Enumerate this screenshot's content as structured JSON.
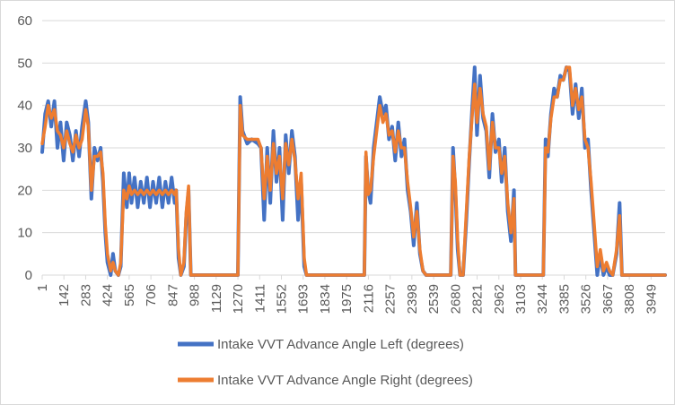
{
  "chart_data": {
    "type": "line",
    "title": "",
    "xlabel": "",
    "ylabel": "",
    "ylim": [
      0,
      60
    ],
    "yticks": [
      0,
      10,
      20,
      30,
      40,
      50,
      60
    ],
    "xlim": [
      1,
      4040
    ],
    "xticks": [
      1,
      142,
      283,
      424,
      565,
      706,
      847,
      988,
      1129,
      1270,
      1411,
      1552,
      1693,
      1834,
      1975,
      2116,
      2257,
      2398,
      2539,
      2680,
      2821,
      2962,
      3103,
      3244,
      3385,
      3526,
      3667,
      3808,
      3949
    ],
    "grid": "horizontal",
    "legend_position": "bottom",
    "series": [
      {
        "name": "Intake VVT Advance Angle Left (degrees)",
        "color": "#4472C4",
        "points": [
          [
            1,
            29
          ],
          [
            20,
            38
          ],
          [
            40,
            41
          ],
          [
            60,
            35
          ],
          [
            80,
            41
          ],
          [
            100,
            30
          ],
          [
            120,
            36
          ],
          [
            140,
            27
          ],
          [
            160,
            36
          ],
          [
            180,
            33
          ],
          [
            200,
            27
          ],
          [
            220,
            34
          ],
          [
            240,
            28
          ],
          [
            260,
            35
          ],
          [
            283,
            41
          ],
          [
            300,
            36
          ],
          [
            320,
            18
          ],
          [
            340,
            30
          ],
          [
            360,
            27
          ],
          [
            380,
            30
          ],
          [
            395,
            22
          ],
          [
            410,
            10
          ],
          [
            424,
            3
          ],
          [
            445,
            0
          ],
          [
            460,
            5
          ],
          [
            475,
            1
          ],
          [
            495,
            0
          ],
          [
            510,
            2
          ],
          [
            530,
            24
          ],
          [
            550,
            16
          ],
          [
            565,
            24
          ],
          [
            580,
            17
          ],
          [
            600,
            23
          ],
          [
            620,
            16
          ],
          [
            640,
            22
          ],
          [
            660,
            17
          ],
          [
            680,
            23
          ],
          [
            700,
            16
          ],
          [
            720,
            22
          ],
          [
            740,
            17
          ],
          [
            760,
            23
          ],
          [
            780,
            16
          ],
          [
            800,
            22
          ],
          [
            820,
            17
          ],
          [
            840,
            23
          ],
          [
            860,
            17
          ],
          [
            870,
            20
          ],
          [
            885,
            4
          ],
          [
            900,
            0
          ],
          [
            920,
            2
          ],
          [
            935,
            14
          ],
          [
            950,
            20
          ],
          [
            965,
            0
          ],
          [
            1000,
            0
          ],
          [
            1270,
            0
          ],
          [
            1285,
            42
          ],
          [
            1300,
            34
          ],
          [
            1330,
            31
          ],
          [
            1360,
            32
          ],
          [
            1400,
            31
          ],
          [
            1420,
            30
          ],
          [
            1440,
            13
          ],
          [
            1460,
            30
          ],
          [
            1480,
            17
          ],
          [
            1500,
            34
          ],
          [
            1520,
            22
          ],
          [
            1540,
            30
          ],
          [
            1560,
            13
          ],
          [
            1580,
            33
          ],
          [
            1600,
            24
          ],
          [
            1620,
            34
          ],
          [
            1640,
            28
          ],
          [
            1660,
            13
          ],
          [
            1680,
            22
          ],
          [
            1700,
            2
          ],
          [
            1715,
            0
          ],
          [
            1800,
            0
          ],
          [
            2000,
            0
          ],
          [
            2090,
            0
          ],
          [
            2100,
            28
          ],
          [
            2115,
            20
          ],
          [
            2130,
            17
          ],
          [
            2150,
            30
          ],
          [
            2170,
            36
          ],
          [
            2190,
            42
          ],
          [
            2210,
            38
          ],
          [
            2230,
            40
          ],
          [
            2250,
            32
          ],
          [
            2270,
            35
          ],
          [
            2290,
            27
          ],
          [
            2310,
            36
          ],
          [
            2330,
            28
          ],
          [
            2350,
            32
          ],
          [
            2370,
            20
          ],
          [
            2390,
            15
          ],
          [
            2410,
            7
          ],
          [
            2430,
            17
          ],
          [
            2450,
            5
          ],
          [
            2470,
            1
          ],
          [
            2490,
            0
          ],
          [
            2650,
            0
          ],
          [
            2665,
            30
          ],
          [
            2680,
            20
          ],
          [
            2695,
            6
          ],
          [
            2710,
            0
          ],
          [
            2730,
            0
          ],
          [
            2750,
            12
          ],
          [
            2770,
            27
          ],
          [
            2790,
            40
          ],
          [
            2805,
            49
          ],
          [
            2820,
            33
          ],
          [
            2840,
            47
          ],
          [
            2860,
            37
          ],
          [
            2880,
            34
          ],
          [
            2900,
            23
          ],
          [
            2920,
            38
          ],
          [
            2940,
            29
          ],
          [
            2962,
            32
          ],
          [
            2980,
            22
          ],
          [
            3000,
            30
          ],
          [
            3020,
            15
          ],
          [
            3040,
            8
          ],
          [
            3060,
            20
          ],
          [
            3070,
            0
          ],
          [
            3100,
            0
          ],
          [
            3250,
            0
          ],
          [
            3265,
            32
          ],
          [
            3280,
            28
          ],
          [
            3300,
            38
          ],
          [
            3320,
            44
          ],
          [
            3340,
            42
          ],
          [
            3360,
            47
          ],
          [
            3380,
            46
          ],
          [
            3400,
            49
          ],
          [
            3420,
            48
          ],
          [
            3440,
            38
          ],
          [
            3460,
            45
          ],
          [
            3480,
            37
          ],
          [
            3500,
            44
          ],
          [
            3520,
            30
          ],
          [
            3540,
            32
          ],
          [
            3560,
            20
          ],
          [
            3580,
            10
          ],
          [
            3600,
            0
          ],
          [
            3620,
            5
          ],
          [
            3640,
            0
          ],
          [
            3660,
            2
          ],
          [
            3680,
            0
          ],
          [
            3700,
            0
          ],
          [
            3725,
            5
          ],
          [
            3745,
            17
          ],
          [
            3760,
            0
          ],
          [
            3800,
            0
          ],
          [
            4040,
            0
          ]
        ]
      },
      {
        "name": "Intake VVT Advance Angle Right (degrees)",
        "color": "#ED7D31",
        "points": [
          [
            1,
            31
          ],
          [
            20,
            35
          ],
          [
            40,
            40
          ],
          [
            60,
            37
          ],
          [
            80,
            39
          ],
          [
            100,
            34
          ],
          [
            120,
            33
          ],
          [
            140,
            30
          ],
          [
            160,
            34
          ],
          [
            180,
            31
          ],
          [
            200,
            29
          ],
          [
            220,
            33
          ],
          [
            240,
            30
          ],
          [
            260,
            32
          ],
          [
            283,
            39
          ],
          [
            300,
            35
          ],
          [
            320,
            20
          ],
          [
            340,
            28
          ],
          [
            360,
            28
          ],
          [
            380,
            29
          ],
          [
            395,
            24
          ],
          [
            410,
            12
          ],
          [
            424,
            5
          ],
          [
            445,
            1
          ],
          [
            460,
            3
          ],
          [
            475,
            1
          ],
          [
            495,
            0
          ],
          [
            510,
            3
          ],
          [
            530,
            20
          ],
          [
            550,
            18
          ],
          [
            565,
            21
          ],
          [
            580,
            19
          ],
          [
            600,
            20
          ],
          [
            620,
            19
          ],
          [
            640,
            20
          ],
          [
            660,
            19
          ],
          [
            680,
            20
          ],
          [
            700,
            19
          ],
          [
            720,
            20
          ],
          [
            740,
            19
          ],
          [
            760,
            20
          ],
          [
            780,
            19
          ],
          [
            800,
            20
          ],
          [
            820,
            19
          ],
          [
            840,
            20
          ],
          [
            860,
            19
          ],
          [
            870,
            20
          ],
          [
            885,
            6
          ],
          [
            900,
            0
          ],
          [
            920,
            3
          ],
          [
            935,
            15
          ],
          [
            950,
            21
          ],
          [
            965,
            0
          ],
          [
            1000,
            0
          ],
          [
            1270,
            0
          ],
          [
            1285,
            40
          ],
          [
            1300,
            33
          ],
          [
            1330,
            32
          ],
          [
            1360,
            32
          ],
          [
            1400,
            32
          ],
          [
            1420,
            30
          ],
          [
            1440,
            18
          ],
          [
            1460,
            28
          ],
          [
            1480,
            20
          ],
          [
            1500,
            31
          ],
          [
            1520,
            24
          ],
          [
            1540,
            28
          ],
          [
            1560,
            18
          ],
          [
            1580,
            31
          ],
          [
            1600,
            26
          ],
          [
            1620,
            32
          ],
          [
            1640,
            27
          ],
          [
            1660,
            18
          ],
          [
            1680,
            24
          ],
          [
            1700,
            4
          ],
          [
            1715,
            0
          ],
          [
            1800,
            0
          ],
          [
            2000,
            0
          ],
          [
            2090,
            0
          ],
          [
            2100,
            29
          ],
          [
            2115,
            19
          ],
          [
            2130,
            20
          ],
          [
            2150,
            28
          ],
          [
            2170,
            34
          ],
          [
            2190,
            40
          ],
          [
            2210,
            36
          ],
          [
            2230,
            38
          ],
          [
            2250,
            33
          ],
          [
            2270,
            34
          ],
          [
            2290,
            29
          ],
          [
            2310,
            34
          ],
          [
            2330,
            30
          ],
          [
            2350,
            30
          ],
          [
            2370,
            22
          ],
          [
            2390,
            16
          ],
          [
            2410,
            9
          ],
          [
            2430,
            15
          ],
          [
            2450,
            6
          ],
          [
            2470,
            1
          ],
          [
            2490,
            0
          ],
          [
            2650,
            0
          ],
          [
            2665,
            28
          ],
          [
            2680,
            22
          ],
          [
            2695,
            8
          ],
          [
            2710,
            0
          ],
          [
            2730,
            0
          ],
          [
            2750,
            14
          ],
          [
            2770,
            28
          ],
          [
            2790,
            38
          ],
          [
            2805,
            45
          ],
          [
            2820,
            36
          ],
          [
            2840,
            44
          ],
          [
            2860,
            38
          ],
          [
            2880,
            35
          ],
          [
            2900,
            25
          ],
          [
            2920,
            36
          ],
          [
            2940,
            30
          ],
          [
            2962,
            30
          ],
          [
            2980,
            24
          ],
          [
            3000,
            28
          ],
          [
            3020,
            17
          ],
          [
            3040,
            10
          ],
          [
            3060,
            18
          ],
          [
            3070,
            0
          ],
          [
            3100,
            0
          ],
          [
            3250,
            0
          ],
          [
            3265,
            30
          ],
          [
            3280,
            29
          ],
          [
            3300,
            37
          ],
          [
            3320,
            42
          ],
          [
            3340,
            42
          ],
          [
            3360,
            46
          ],
          [
            3380,
            46
          ],
          [
            3400,
            49
          ],
          [
            3420,
            49
          ],
          [
            3440,
            40
          ],
          [
            3460,
            44
          ],
          [
            3480,
            39
          ],
          [
            3500,
            42
          ],
          [
            3520,
            32
          ],
          [
            3540,
            30
          ],
          [
            3560,
            22
          ],
          [
            3580,
            12
          ],
          [
            3600,
            2
          ],
          [
            3620,
            6
          ],
          [
            3640,
            1
          ],
          [
            3660,
            3
          ],
          [
            3680,
            1
          ],
          [
            3700,
            0
          ],
          [
            3725,
            6
          ],
          [
            3745,
            14
          ],
          [
            3760,
            0
          ],
          [
            3800,
            0
          ],
          [
            4040,
            0
          ]
        ]
      }
    ]
  }
}
